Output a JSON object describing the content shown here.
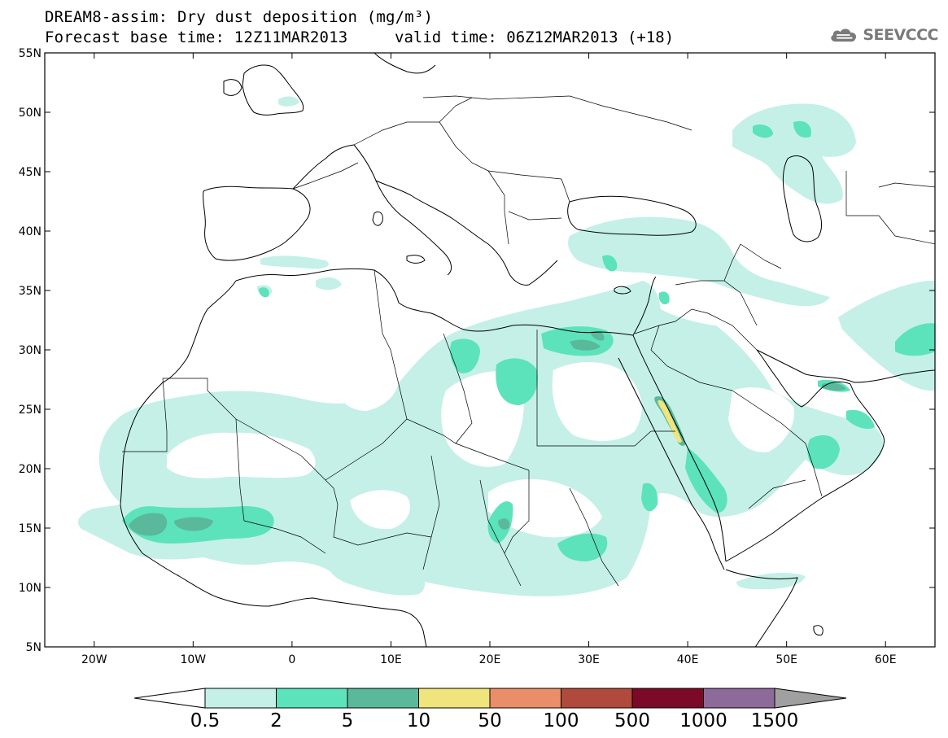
{
  "header": {
    "title": "DREAM8-assim: Dry dust deposition (mg/m³)",
    "base_time": "Forecast base time: 12Z11MAR2013",
    "valid_time": "valid time: 06Z12MAR2013 (+18)"
  },
  "logo": {
    "icon": "cloud-icon",
    "text": "SEEVCCC"
  },
  "axes": {
    "lat_labels": [
      "55N",
      "50N",
      "45N",
      "40N",
      "35N",
      "30N",
      "25N",
      "20N",
      "15N",
      "10N",
      "5N"
    ],
    "lat_values": [
      55,
      50,
      45,
      40,
      35,
      30,
      25,
      20,
      15,
      10,
      5
    ],
    "lon_labels": [
      "20W",
      "10W",
      "0",
      "10E",
      "20E",
      "30E",
      "40E",
      "50E",
      "60E"
    ],
    "lon_values": [
      -20,
      -10,
      0,
      10,
      20,
      30,
      40,
      50,
      60
    ],
    "lon_range": [
      -25,
      65
    ],
    "lat_range": [
      5,
      55
    ]
  },
  "colorbar": {
    "labels": [
      "0.5",
      "2",
      "5",
      "10",
      "50",
      "100",
      "500",
      "1000",
      "1500"
    ],
    "colors": [
      "#c4f0e8",
      "#5ce3bc",
      "#5ab99a",
      "#f0e47c",
      "#ea8e6a",
      "#b04a3c",
      "#7a0a28",
      "#8c6a9a"
    ],
    "under_color": "#ffffff",
    "over_color": "#a0a0a0"
  },
  "colors": {
    "level1": "#c4f0e8",
    "level2": "#5ce3bc",
    "level3": "#5ab99a",
    "level4": "#f0e47c",
    "coast": "#000000",
    "border": "#000000"
  }
}
